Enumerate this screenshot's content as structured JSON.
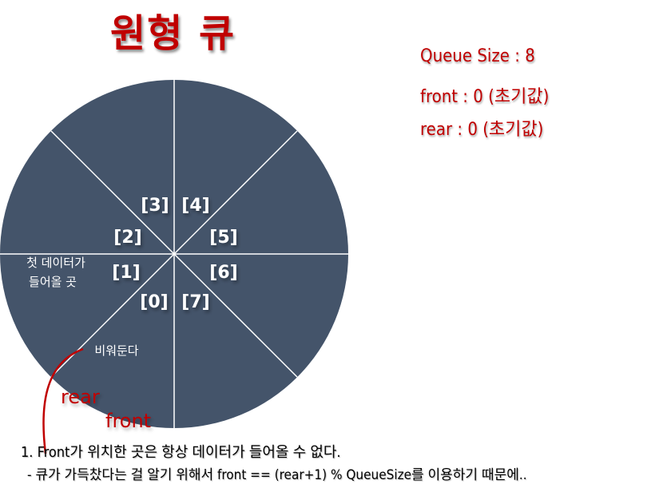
{
  "title": "원형 큐",
  "info": {
    "queue_size": "Queue Size : 8",
    "front": "front : 0 (초기값)",
    "rear": "rear : 0 (초기값)"
  },
  "slots": [
    "[0]",
    "[1]",
    "[2]",
    "[3]",
    "[4]",
    "[5]",
    "[6]",
    "[7]"
  ],
  "labels": {
    "first_data_line1": "첫 데이터가",
    "first_data_line2": "들어올 곳",
    "empty_slot": "비워둔다",
    "rear_pointer": "rear",
    "front_pointer": "front"
  },
  "notes": {
    "line1": "1. Front가 위치한 곳은 항상 데이터가 들어올 수 없다.",
    "line2": "- 큐가 가득찼다는 걸 알기 위해서 front == (rear+1) % QueueSize를 이용하기 때문에.."
  },
  "colors": {
    "wheel": "#44546a",
    "divider": "#ffffff",
    "accent": "#c00000"
  }
}
